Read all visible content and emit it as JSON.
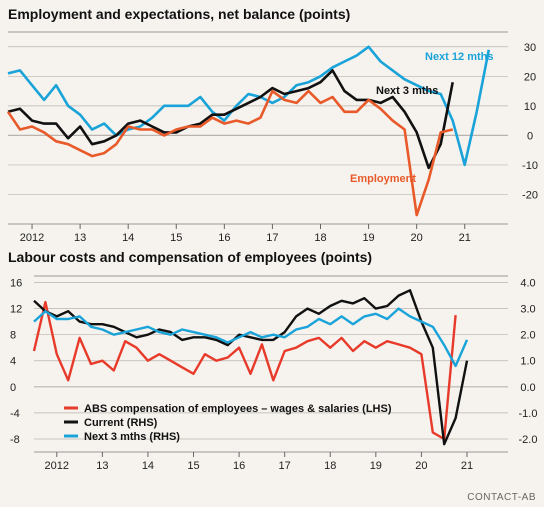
{
  "colors": {
    "employment": "#e85a2a",
    "next3": "#111111",
    "next12": "#1aa3d9",
    "abs": "#e83a2a",
    "current": "#111111",
    "next3_rhs": "#1aa3d9",
    "grid": "#b8b4ad",
    "background": "#f6f3ee"
  },
  "source_text": "CONTACT-AB",
  "chart_data": [
    {
      "type": "line",
      "title": "Employment and expectations, net balance (points)",
      "xlabel": "",
      "ylabel": "",
      "x_tick_labels": [
        "2012",
        "13",
        "14",
        "15",
        "16",
        "17",
        "18",
        "19",
        "20",
        "21"
      ],
      "x_tick_years": [
        2012,
        2013,
        2014,
        2015,
        2016,
        2017,
        2018,
        2019,
        2020,
        2021
      ],
      "xlim": [
        2011.5,
        2021.9
      ],
      "ylim": [
        -30,
        35
      ],
      "y_ticks": [
        30,
        20,
        10,
        0,
        -10,
        -20
      ],
      "y_axis_side": "right",
      "grid": true,
      "series": [
        {
          "name": "Next 12 mths",
          "color_key": "next12",
          "x": [
            2011.5,
            2011.75,
            2012.0,
            2012.25,
            2012.5,
            2012.75,
            2013.0,
            2013.25,
            2013.5,
            2013.75,
            2014.0,
            2014.25,
            2014.5,
            2014.75,
            2015.0,
            2015.25,
            2015.5,
            2015.75,
            2016.0,
            2016.25,
            2016.5,
            2016.75,
            2017.0,
            2017.25,
            2017.5,
            2017.75,
            2018.0,
            2018.25,
            2018.5,
            2018.75,
            2019.0,
            2019.25,
            2019.5,
            2019.75,
            2020.0,
            2020.25,
            2020.5,
            2020.75,
            2021.0,
            2021.25,
            2021.5
          ],
          "y": [
            21,
            22,
            17,
            12,
            17,
            10,
            7,
            2,
            4,
            0,
            2,
            3,
            6,
            10,
            10,
            10,
            13,
            8,
            5,
            10,
            14,
            13,
            11,
            13,
            17,
            18,
            20,
            23,
            25,
            27,
            30,
            25,
            22,
            19,
            17,
            15,
            14,
            5,
            -10,
            8,
            29
          ]
        },
        {
          "name": "Next 3 mths",
          "color_key": "next3",
          "x": [
            2011.5,
            2011.75,
            2012.0,
            2012.25,
            2012.5,
            2012.75,
            2013.0,
            2013.25,
            2013.5,
            2013.75,
            2014.0,
            2014.25,
            2014.5,
            2014.75,
            2015.0,
            2015.25,
            2015.5,
            2015.75,
            2016.0,
            2016.25,
            2016.5,
            2016.75,
            2017.0,
            2017.25,
            2017.5,
            2017.75,
            2018.0,
            2018.25,
            2018.5,
            2018.75,
            2019.0,
            2019.25,
            2019.5,
            2019.75,
            2020.0,
            2020.25,
            2020.5,
            2020.75
          ],
          "y": [
            8,
            9,
            5,
            4,
            4,
            -1,
            3,
            -3,
            -2,
            0,
            4,
            5,
            3,
            1,
            1,
            3,
            4,
            7,
            7,
            9,
            11,
            13,
            16,
            14,
            15,
            16,
            18,
            22,
            15,
            12,
            12,
            11,
            13,
            8,
            1,
            -11,
            -3,
            18
          ]
        },
        {
          "name": "Employment",
          "color_key": "employment",
          "x": [
            2011.5,
            2011.75,
            2012.0,
            2012.25,
            2012.5,
            2012.75,
            2013.0,
            2013.25,
            2013.5,
            2013.75,
            2014.0,
            2014.25,
            2014.5,
            2014.75,
            2015.0,
            2015.25,
            2015.5,
            2015.75,
            2016.0,
            2016.25,
            2016.5,
            2016.75,
            2017.0,
            2017.25,
            2017.5,
            2017.75,
            2018.0,
            2018.25,
            2018.5,
            2018.75,
            2019.0,
            2019.25,
            2019.5,
            2019.75,
            2020.0,
            2020.25,
            2020.5,
            2020.75
          ],
          "y": [
            8,
            2,
            3,
            1,
            -2,
            -3,
            -5,
            -7,
            -6,
            -3,
            3,
            2,
            2,
            0,
            2,
            3,
            3,
            6,
            4,
            5,
            4,
            6,
            15,
            12,
            11,
            15,
            11,
            13,
            8,
            8,
            12,
            9,
            5,
            2,
            -27,
            -15,
            1,
            2
          ]
        }
      ]
    },
    {
      "type": "line",
      "title": "Labour costs and compensation of employees (points)",
      "xlabel": "",
      "ylabel": "",
      "x_tick_labels": [
        "2012",
        "13",
        "14",
        "15",
        "16",
        "17",
        "18",
        "19",
        "20",
        "21"
      ],
      "x_tick_years": [
        2012,
        2013,
        2014,
        2015,
        2016,
        2017,
        2018,
        2019,
        2020,
        2021
      ],
      "xlim": [
        2011.5,
        2021.9
      ],
      "ylim_left": [
        -10,
        17
      ],
      "y_ticks_left": [
        16,
        12,
        8,
        4,
        0,
        -4,
        -8
      ],
      "ylim_right": [
        -2.5,
        4.25
      ],
      "y_ticks_right": [
        "4.0",
        "3.0",
        "2.0",
        "1.0",
        "0.0",
        "-1.0",
        "-2.0"
      ],
      "grid": true,
      "legend_position": "bottom-left",
      "series": [
        {
          "name": "ABS compensation of employees – wages & salaries (LHS)",
          "axis": "left",
          "color_key": "abs",
          "x": [
            2011.5,
            2011.75,
            2012.0,
            2012.25,
            2012.5,
            2012.75,
            2013.0,
            2013.25,
            2013.5,
            2013.75,
            2014.0,
            2014.25,
            2014.5,
            2014.75,
            2015.0,
            2015.25,
            2015.5,
            2015.75,
            2016.0,
            2016.25,
            2016.5,
            2016.75,
            2017.0,
            2017.25,
            2017.5,
            2017.75,
            2018.0,
            2018.25,
            2018.5,
            2018.75,
            2019.0,
            2019.25,
            2019.5,
            2019.75,
            2020.0,
            2020.25,
            2020.5,
            2020.75
          ],
          "y": [
            5.5,
            13,
            5,
            1,
            7.5,
            3.5,
            4,
            2.5,
            7,
            6,
            4,
            5,
            4,
            3,
            2,
            5,
            4,
            4.5,
            6,
            2,
            6.5,
            1,
            5.5,
            6,
            7,
            7.5,
            6,
            7.5,
            5.5,
            7,
            6,
            7,
            6.5,
            6,
            5,
            -7,
            -8,
            11
          ]
        },
        {
          "name": "Current (RHS)",
          "axis": "right",
          "color_key": "current",
          "x": [
            2011.5,
            2011.75,
            2012.0,
            2012.25,
            2012.5,
            2012.75,
            2013.0,
            2013.25,
            2013.5,
            2013.75,
            2014.0,
            2014.25,
            2014.5,
            2014.75,
            2015.0,
            2015.25,
            2015.5,
            2015.75,
            2016.0,
            2016.25,
            2016.5,
            2016.75,
            2017.0,
            2017.25,
            2017.5,
            2017.75,
            2018.0,
            2018.25,
            2018.5,
            2018.75,
            2019.0,
            2019.25,
            2019.5,
            2019.75,
            2020.0,
            2020.25,
            2020.5,
            2020.75,
            2021.0
          ],
          "y": [
            3.3,
            2.9,
            2.7,
            2.9,
            2.5,
            2.4,
            2.4,
            2.3,
            2.1,
            1.9,
            2.0,
            2.2,
            2.1,
            1.8,
            1.9,
            1.9,
            1.8,
            1.6,
            2.0,
            1.9,
            1.8,
            1.8,
            2.1,
            2.7,
            3.0,
            2.8,
            3.1,
            3.3,
            3.2,
            3.4,
            3.0,
            3.1,
            3.5,
            3.7,
            2.5,
            1.5,
            -2.2,
            -1.2,
            1.0
          ]
        },
        {
          "name": "Next 3 mths (RHS)",
          "axis": "right",
          "color_key": "next3_rhs",
          "x": [
            2011.5,
            2011.75,
            2012.0,
            2012.25,
            2012.5,
            2012.75,
            2013.0,
            2013.25,
            2013.5,
            2013.75,
            2014.0,
            2014.25,
            2014.5,
            2014.75,
            2015.0,
            2015.25,
            2015.5,
            2015.75,
            2016.0,
            2016.25,
            2016.5,
            2016.75,
            2017.0,
            2017.25,
            2017.5,
            2017.75,
            2018.0,
            2018.25,
            2018.5,
            2018.75,
            2019.0,
            2019.25,
            2019.5,
            2019.75,
            2020.0,
            2020.25,
            2020.5,
            2020.75,
            2021.0
          ],
          "y": [
            2.5,
            2.9,
            2.6,
            2.6,
            2.7,
            2.3,
            2.2,
            2.0,
            2.1,
            2.2,
            2.3,
            2.1,
            2.0,
            2.2,
            2.1,
            2.0,
            1.9,
            1.7,
            1.9,
            2.1,
            1.9,
            2.0,
            1.9,
            2.2,
            2.3,
            2.6,
            2.4,
            2.7,
            2.4,
            2.7,
            2.8,
            2.6,
            3.0,
            2.7,
            2.5,
            2.3,
            1.6,
            0.8,
            1.8
          ]
        }
      ]
    }
  ],
  "annotations": {
    "next12": "Next 12 mths",
    "next3": "Next 3 mths",
    "employment": "Employment"
  }
}
